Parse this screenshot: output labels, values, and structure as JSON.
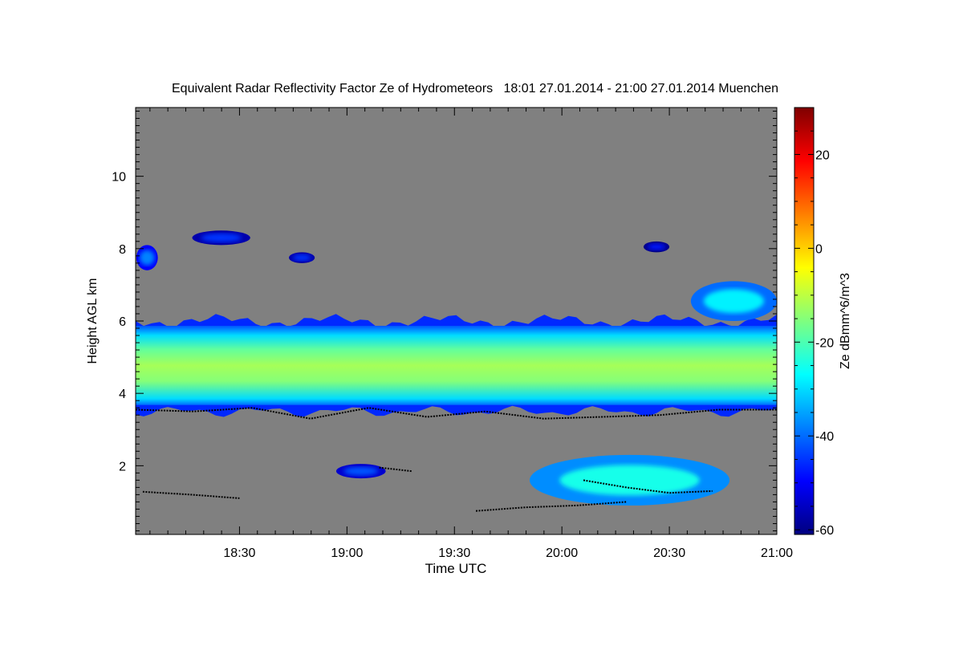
{
  "chart_data": {
    "type": "heatmap",
    "title": "Equivalent Radar Reflectivity Factor Ze of Hydrometeors   18:01 27.01.2014 - 21:00 27.01.2014 Muenchen",
    "xlabel": "Time UTC",
    "ylabel": "Height AGL km",
    "colorbar_label": "Ze dBmm^6/m^3",
    "x_tick_labels": [
      "18:30",
      "19:00",
      "19:30",
      "20:00",
      "20:30",
      "21:00"
    ],
    "x_tick_hours": [
      18.5,
      19.0,
      19.5,
      20.0,
      20.5,
      21.0
    ],
    "xlim_hours": [
      18.0167,
      21.0
    ],
    "y_ticks_km": [
      2,
      4,
      6,
      8,
      10
    ],
    "ylim_km": [
      0.1,
      11.9
    ],
    "colorbar_ticks": [
      -60,
      -40,
      -20,
      0,
      20
    ],
    "colorbar_range": [
      -61,
      30
    ],
    "background_color": "#808080",
    "colormap": [
      "#00007f",
      "#0000ff",
      "#007fff",
      "#00ffff",
      "#7fff7f",
      "#ffff00",
      "#ff7f00",
      "#ff0000",
      "#7f0000"
    ],
    "cloud_base_color": "#000000",
    "features": [
      {
        "kind": "band",
        "t_start": 18.0167,
        "t_end": 21.0,
        "base_km": 3.5,
        "top_km": 6.0,
        "peak_dbz": -12
      },
      {
        "kind": "patch",
        "t_start": 18.95,
        "t_end": 19.18,
        "base_km": 1.65,
        "top_km": 2.05,
        "peak_dbz": -42
      },
      {
        "kind": "patch",
        "t_start": 19.85,
        "t_end": 20.78,
        "base_km": 0.9,
        "top_km": 2.3,
        "peak_dbz": -25
      },
      {
        "kind": "patch",
        "t_start": 20.6,
        "t_end": 21.0,
        "base_km": 6.0,
        "top_km": 7.1,
        "peak_dbz": -28
      },
      {
        "kind": "patch",
        "t_start": 18.02,
        "t_end": 18.12,
        "base_km": 7.4,
        "top_km": 8.1,
        "peak_dbz": -38
      },
      {
        "kind": "patch",
        "t_start": 18.28,
        "t_end": 18.55,
        "base_km": 8.1,
        "top_km": 8.5,
        "peak_dbz": -45
      },
      {
        "kind": "patch",
        "t_start": 18.73,
        "t_end": 18.85,
        "base_km": 7.6,
        "top_km": 7.9,
        "peak_dbz": -45
      },
      {
        "kind": "patch",
        "t_start": 20.38,
        "t_end": 20.5,
        "base_km": 7.9,
        "top_km": 8.2,
        "peak_dbz": -48
      }
    ],
    "cloud_base_lines": [
      {
        "t_start": 18.05,
        "t_end": 18.5,
        "height_km": [
          1.28,
          1.2,
          1.1
        ]
      },
      {
        "t_start": 19.15,
        "t_end": 19.3,
        "height_km": [
          1.95,
          1.85
        ]
      },
      {
        "t_start": 19.6,
        "t_end": 20.3,
        "height_km": [
          0.75,
          0.85,
          0.9,
          1.0
        ]
      },
      {
        "t_start": 20.1,
        "t_end": 20.7,
        "height_km": [
          1.6,
          1.4,
          1.25,
          1.3
        ]
      },
      {
        "t_start": 18.0167,
        "t_end": 21.0,
        "height_km": [
          3.55,
          3.5,
          3.6,
          3.3,
          3.6,
          3.35,
          3.5,
          3.3,
          3.35,
          3.4,
          3.55,
          3.55
        ]
      }
    ]
  }
}
